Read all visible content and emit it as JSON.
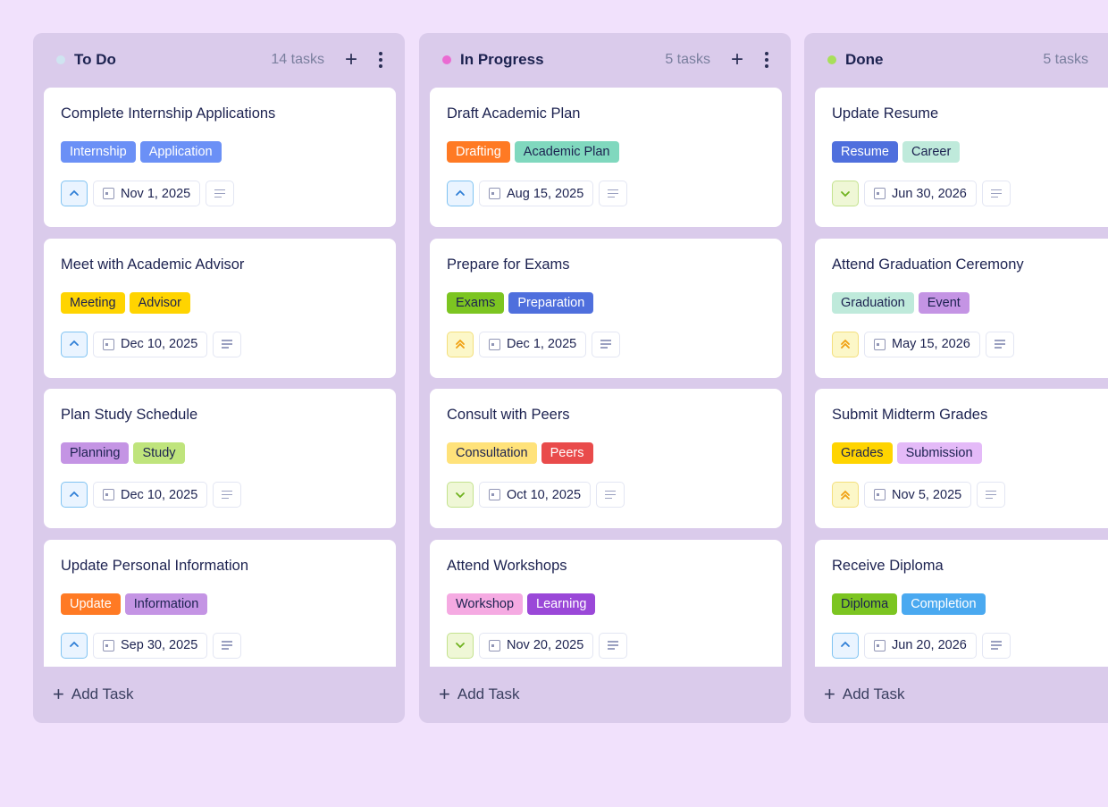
{
  "columns": [
    {
      "title": "To Do",
      "count": "14 tasks",
      "dot_color": "#cfe4f0",
      "show_plus": true,
      "add_task": "Add Task",
      "cards": [
        {
          "title": "Complete Internship Applications",
          "tags": [
            {
              "label": "Internship",
              "bg": "#6b90f6",
              "fg": "#ffffff"
            },
            {
              "label": "Application",
              "bg": "#6b90f6",
              "fg": "#ffffff"
            }
          ],
          "priority": "up",
          "date": "Nov 1, 2025"
        },
        {
          "title": "Meet with Academic Advisor",
          "tags": [
            {
              "label": "Meeting",
              "bg": "#ffd400",
              "fg": "#1c2250"
            },
            {
              "label": "Advisor",
              "bg": "#ffd400",
              "fg": "#1c2250"
            }
          ],
          "priority": "up",
          "date": "Dec 10, 2025"
        },
        {
          "title": "Plan Study Schedule",
          "tags": [
            {
              "label": "Planning",
              "bg": "#c494e4",
              "fg": "#1c2250"
            },
            {
              "label": "Study",
              "bg": "#bfe47c",
              "fg": "#1c2250"
            }
          ],
          "priority": "up",
          "date": "Dec 10, 2025"
        },
        {
          "title": "Update Personal Information",
          "tags": [
            {
              "label": "Update",
              "bg": "#ff7a24",
              "fg": "#ffffff"
            },
            {
              "label": "Information",
              "bg": "#c494e4",
              "fg": "#1c2250"
            }
          ],
          "priority": "up",
          "date": "Sep 30, 2025"
        }
      ]
    },
    {
      "title": "In Progress",
      "count": "5 tasks",
      "dot_color": "#ea6bd2",
      "show_plus": true,
      "add_task": "Add Task",
      "cards": [
        {
          "title": "Draft Academic Plan",
          "tags": [
            {
              "label": "Drafting",
              "bg": "#ff7a24",
              "fg": "#ffffff"
            },
            {
              "label": "Academic Plan",
              "bg": "#80d8be",
              "fg": "#1c2250"
            }
          ],
          "priority": "up",
          "date": "Aug 15, 2025"
        },
        {
          "title": "Prepare for Exams",
          "tags": [
            {
              "label": "Exams",
              "bg": "#7cc521",
              "fg": "#1c2250"
            },
            {
              "label": "Preparation",
              "bg": "#4f6fdd",
              "fg": "#ffffff"
            }
          ],
          "priority": "high",
          "date": "Dec 1, 2025"
        },
        {
          "title": "Consult with Peers",
          "tags": [
            {
              "label": "Consultation",
              "bg": "#ffe27a",
              "fg": "#1c2250"
            },
            {
              "label": "Peers",
              "bg": "#e94b4b",
              "fg": "#ffffff"
            }
          ],
          "priority": "down",
          "date": "Oct 10, 2025"
        },
        {
          "title": "Attend Workshops",
          "tags": [
            {
              "label": "Workshop",
              "bg": "#f5aae2",
              "fg": "#1c2250"
            },
            {
              "label": "Learning",
              "bg": "#9a48d8",
              "fg": "#ffffff"
            }
          ],
          "priority": "down",
          "date": "Nov 20, 2025"
        }
      ]
    },
    {
      "title": "Done",
      "count": "5 tasks",
      "dot_color": "#a8df5a",
      "show_plus": false,
      "add_task": "Add Task",
      "cards": [
        {
          "title": "Update Resume",
          "tags": [
            {
              "label": "Resume",
              "bg": "#4f6fdd",
              "fg": "#ffffff"
            },
            {
              "label": "Career",
              "bg": "#bfeadb",
              "fg": "#1c2250"
            }
          ],
          "priority": "down",
          "date": "Jun 30, 2026"
        },
        {
          "title": "Attend Graduation Ceremony",
          "tags": [
            {
              "label": "Graduation",
              "bg": "#bfeadb",
              "fg": "#1c2250"
            },
            {
              "label": "Event",
              "bg": "#c494e4",
              "fg": "#1c2250"
            }
          ],
          "priority": "high",
          "date": "May 15, 2026"
        },
        {
          "title": "Submit Midterm Grades",
          "tags": [
            {
              "label": "Grades",
              "bg": "#ffd400",
              "fg": "#1c2250"
            },
            {
              "label": "Submission",
              "bg": "#e4baf8",
              "fg": "#1c2250"
            }
          ],
          "priority": "high",
          "date": "Nov 5, 2025"
        },
        {
          "title": "Receive Diploma",
          "tags": [
            {
              "label": "Diploma",
              "bg": "#7cc521",
              "fg": "#1c2250"
            },
            {
              "label": "Completion",
              "bg": "#4aa9f0",
              "fg": "#ffffff"
            }
          ],
          "priority": "up",
          "date": "Jun 20, 2026"
        }
      ]
    }
  ],
  "priority_styles": {
    "up": {
      "icon": "chevron-up-icon",
      "bg": "#eaf4ff",
      "border": "#80c3f2",
      "color": "#2f7fd6"
    },
    "high": {
      "icon": "double-chevron-up-icon",
      "bg": "#fcf7c8",
      "border": "#f3df7c",
      "color": "#f0a012"
    },
    "down": {
      "icon": "chevron-down-icon",
      "bg": "#eff7d6",
      "border": "#c3e28e",
      "color": "#6fb21e"
    }
  }
}
